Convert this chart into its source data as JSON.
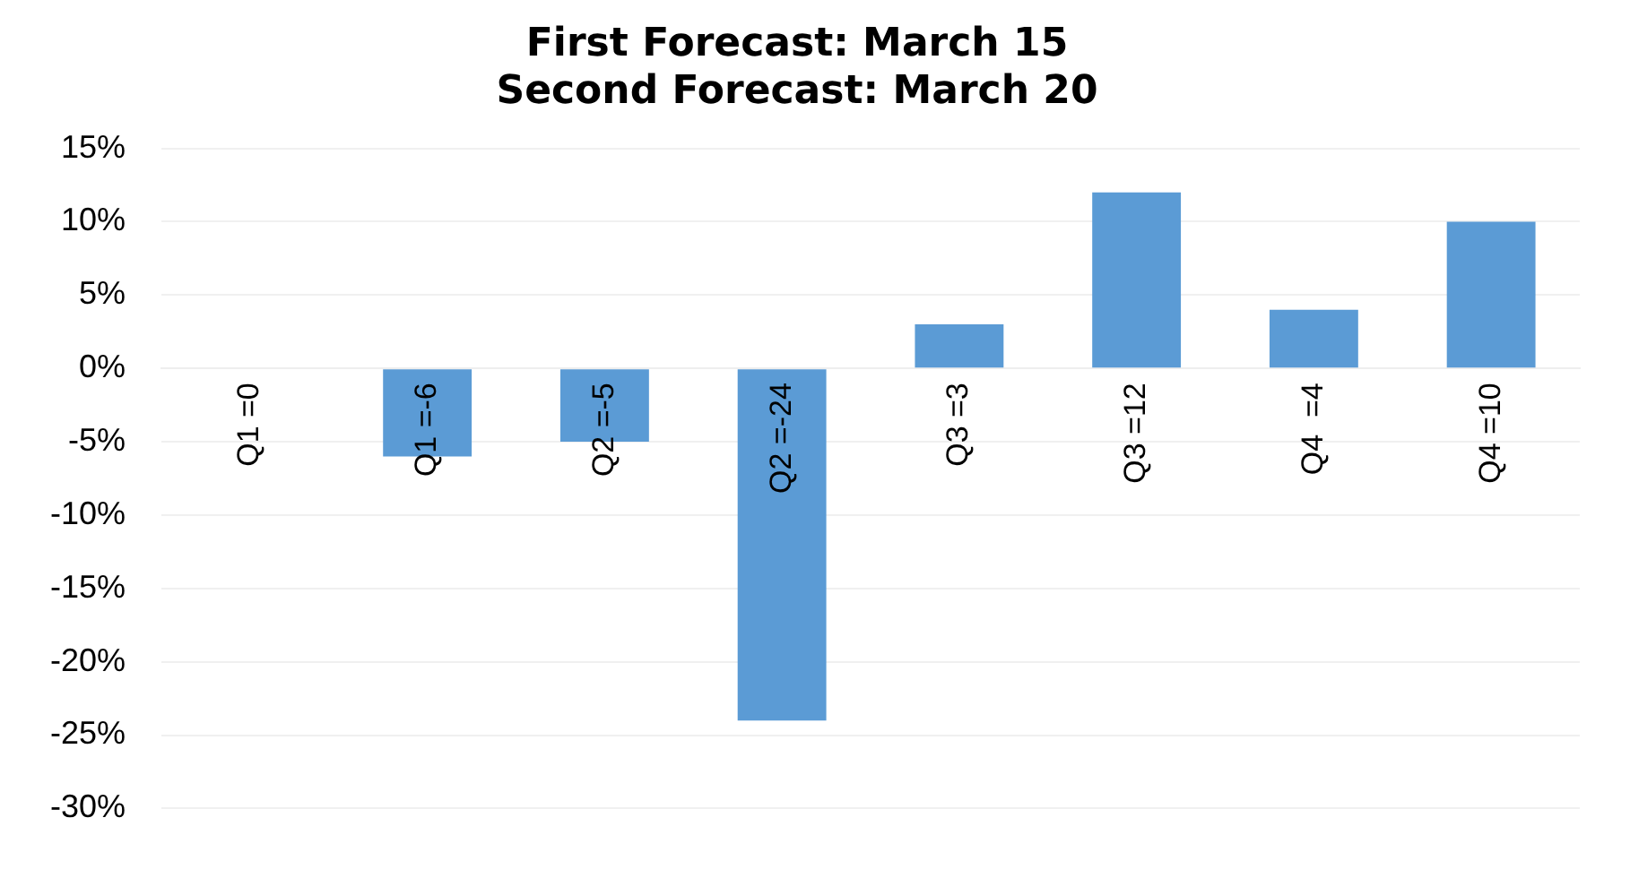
{
  "chart_data": {
    "type": "bar",
    "title": "First Forecast: March 15\nSecond Forecast: March 20",
    "categories": [
      "Q1 =0",
      "Q1 =-6",
      "Q2 =-5",
      "Q2 =-24",
      "Q3 =3",
      "Q3 =12",
      "Q4  =4",
      "Q4 =10"
    ],
    "values": [
      0,
      -6,
      -5,
      -24,
      3,
      12,
      4,
      10
    ],
    "color": "#5b9bd5",
    "ylim": [
      -30,
      15
    ],
    "yticks": [
      {
        "value": -30,
        "label": "-30%"
      },
      {
        "value": -25,
        "label": "-25%"
      },
      {
        "value": -20,
        "label": "-20%"
      },
      {
        "value": -15,
        "label": "-15%"
      },
      {
        "value": -10,
        "label": "-10%"
      },
      {
        "value": -5,
        "label": "-5%"
      },
      {
        "value": 0,
        "label": "0%"
      },
      {
        "value": 5,
        "label": "5%"
      },
      {
        "value": 10,
        "label": "10%"
      },
      {
        "value": 15,
        "label": "15%"
      }
    ],
    "grid": "y"
  }
}
